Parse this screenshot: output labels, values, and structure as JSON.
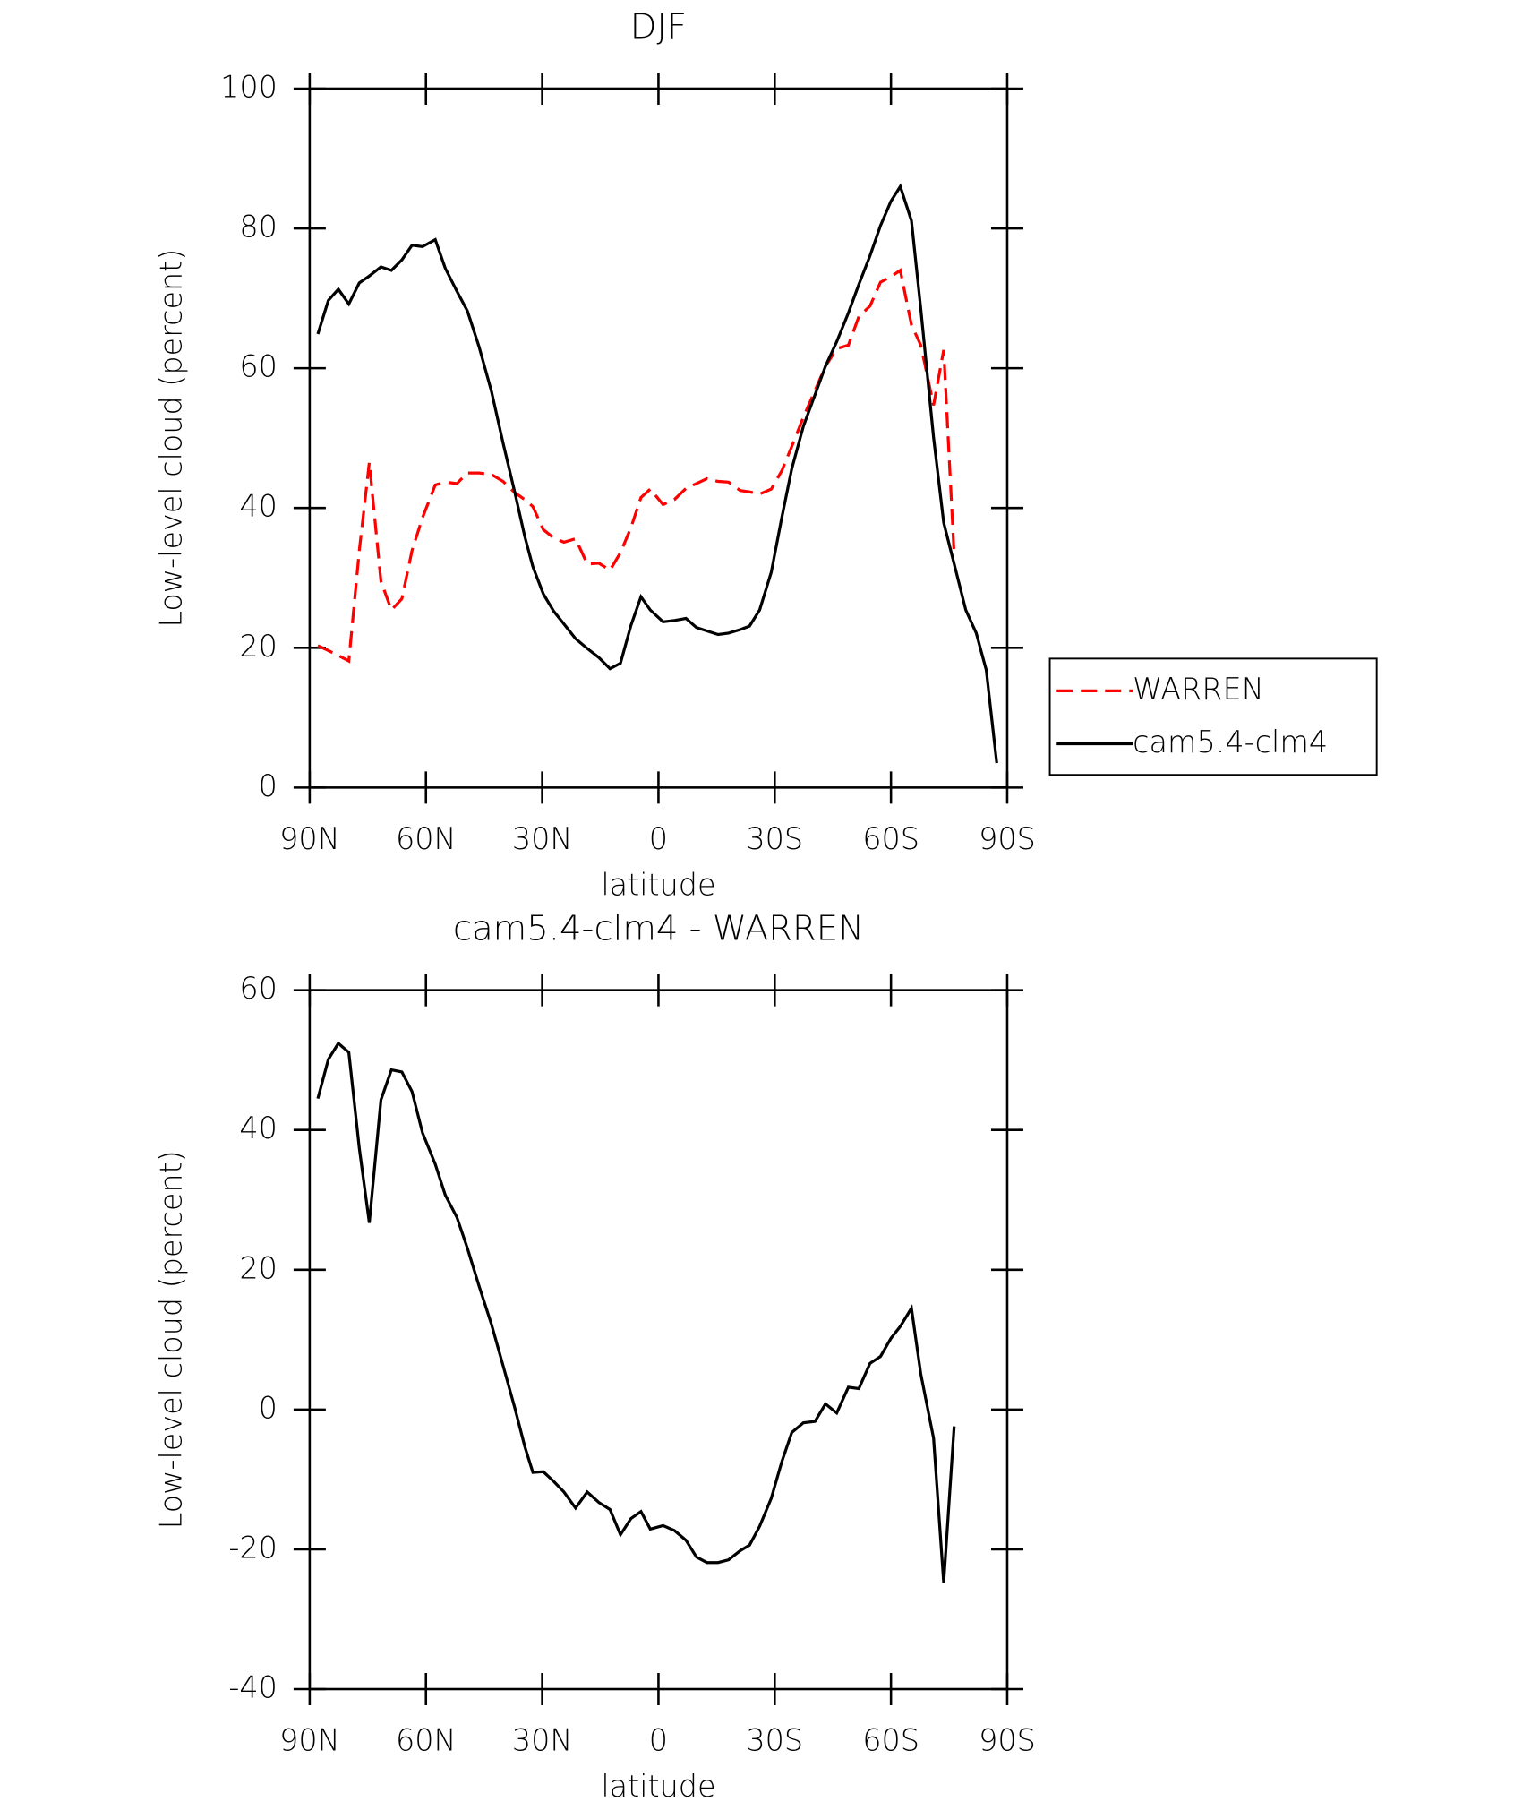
{
  "chart_data": [
    {
      "type": "line",
      "title": "DJF",
      "x_label": "latitude",
      "y_label": "Low-level cloud (percent)",
      "xlim": [
        90,
        -90
      ],
      "ylim": [
        0,
        100
      ],
      "xticks": [
        {
          "value": 90,
          "label": "90N"
        },
        {
          "value": 60,
          "label": "60N"
        },
        {
          "value": 30,
          "label": "30N"
        },
        0,
        {
          "value": -30,
          "label": "30S"
        },
        {
          "value": -60,
          "label": "60S"
        },
        {
          "value": -90,
          "label": "90S"
        }
      ],
      "yticks": [
        0,
        20,
        40,
        60,
        80,
        100
      ],
      "legend": "right",
      "x": [
        87.9,
        85.2,
        82.6,
        79.9,
        77.2,
        74.6,
        71.6,
        68.9,
        66.2,
        63.6,
        60.9,
        57.6,
        55.0,
        52.0,
        49.3,
        46.3,
        43.1,
        40.1,
        37.1,
        34.5,
        32.4,
        29.7,
        27.0,
        24.4,
        21.4,
        18.4,
        15.4,
        12.5,
        9.8,
        7.1,
        4.5,
        2.1,
        -1.2,
        -4.1,
        -7.1,
        -9.8,
        -12.5,
        -15.4,
        -18.1,
        -21.1,
        -23.5,
        -26.1,
        -29.1,
        -31.8,
        -34.4,
        -37.4,
        -40.4,
        -43.1,
        -46.0,
        -49.0,
        -51.7,
        -54.6,
        -57.3,
        -60.0,
        -62.4,
        -65.3,
        -67.7,
        -71.0,
        -73.6,
        -76.3,
        -79.3,
        -82.0,
        -84.6,
        -87.3
      ],
      "series": [
        {
          "name": "WARREN",
          "color": "#ff0000",
          "dash": true,
          "values": [
            20.3,
            19.6,
            18.9,
            18.1,
            33.9,
            46.5,
            29.5,
            25.4,
            27.0,
            33.9,
            38.6,
            43.3,
            43.7,
            43.5,
            45.0,
            45.0,
            44.8,
            43.8,
            42.2,
            41.2,
            40.2,
            36.9,
            35.7,
            35.1,
            35.6,
            32.0,
            32.1,
            31.1,
            33.6,
            37.2,
            41.5,
            42.7,
            40.5,
            41.2,
            42.8,
            43.5,
            44.2,
            43.8,
            43.7,
            42.5,
            42.3,
            42.0,
            42.7,
            45.3,
            48.8,
            53.0,
            56.8,
            60.3,
            62.8,
            63.3,
            67.4,
            68.9,
            72.3,
            73.1,
            74.0,
            66.2,
            63.3,
            54.7,
            62.6,
            33.3,
            null,
            null,
            null,
            null
          ]
        },
        {
          "name": "cam5.4-clm4",
          "color": "#000000",
          "dash": false,
          "values": [
            64.9,
            69.7,
            71.3,
            69.2,
            72.2,
            73.2,
            74.5,
            74.0,
            75.5,
            77.6,
            77.4,
            78.4,
            74.3,
            71.0,
            68.2,
            63.1,
            56.7,
            49.3,
            42.3,
            35.9,
            31.6,
            27.7,
            25.2,
            23.4,
            21.3,
            19.9,
            18.6,
            17.0,
            17.8,
            23.2,
            27.3,
            25.4,
            23.7,
            23.9,
            24.2,
            22.9,
            22.4,
            21.9,
            22.1,
            22.6,
            23.1,
            25.4,
            30.8,
            38.6,
            45.6,
            51.7,
            56.2,
            60.3,
            63.8,
            67.9,
            72.0,
            76.1,
            80.4,
            83.9,
            86.0,
            81.1,
            68.5,
            50.1,
            37.9,
            32.0,
            25.4,
            22.1,
            16.8,
            3.5
          ]
        }
      ]
    },
    {
      "type": "line",
      "title": "cam5.4-clm4 - WARREN",
      "x_label": "latitude",
      "y_label": "Low-level cloud (percent)",
      "xlim": [
        90,
        -90
      ],
      "ylim": [
        -40,
        60
      ],
      "xticks": [
        {
          "value": 90,
          "label": "90N"
        },
        {
          "value": 60,
          "label": "60N"
        },
        {
          "value": 30,
          "label": "30N"
        },
        0,
        {
          "value": -30,
          "label": "30S"
        },
        {
          "value": -60,
          "label": "60S"
        },
        {
          "value": -90,
          "label": "90S"
        }
      ],
      "yticks": [
        -40,
        -20,
        0,
        20,
        40,
        60
      ],
      "x": [
        87.9,
        85.2,
        82.6,
        79.9,
        77.2,
        74.6,
        71.6,
        68.9,
        66.2,
        63.6,
        60.9,
        57.6,
        55.0,
        52.0,
        49.3,
        46.3,
        43.1,
        40.1,
        37.1,
        34.5,
        32.4,
        29.7,
        27.0,
        24.4,
        21.4,
        18.4,
        15.4,
        12.5,
        9.8,
        7.1,
        4.5,
        2.1,
        -1.2,
        -4.1,
        -7.1,
        -9.8,
        -12.5,
        -15.4,
        -18.1,
        -21.1,
        -23.5,
        -26.1,
        -29.1,
        -31.8,
        -34.4,
        -37.4,
        -40.4,
        -43.1,
        -46.0,
        -49.0,
        -51.7,
        -54.6,
        -57.3,
        -60.0,
        -62.4,
        -65.3,
        -67.7,
        -71.0,
        -73.6,
        -76.3
      ],
      "series": [
        {
          "color": "#000000",
          "dash": false,
          "values": [
            44.5,
            50.1,
            52.4,
            51.1,
            37.4,
            26.7,
            44.3,
            48.6,
            48.3,
            45.5,
            39.6,
            35.1,
            30.7,
            27.5,
            23.1,
            17.7,
            12.2,
            6.3,
            0.3,
            -5.3,
            -9.0,
            -8.9,
            -10.3,
            -11.8,
            -14.1,
            -11.8,
            -13.3,
            -14.3,
            -17.9,
            -15.6,
            -14.6,
            -17.1,
            -16.6,
            -17.3,
            -18.7,
            -21.1,
            -21.9,
            -21.9,
            -21.5,
            -20.2,
            -19.4,
            -16.7,
            -12.7,
            -7.5,
            -3.3,
            -1.9,
            -1.7,
            0.8,
            -0.5,
            3.2,
            3.0,
            6.6,
            7.6,
            10.2,
            11.9,
            14.5,
            5.1,
            -4.1,
            -24.8,
            -2.4
          ]
        }
      ]
    }
  ]
}
